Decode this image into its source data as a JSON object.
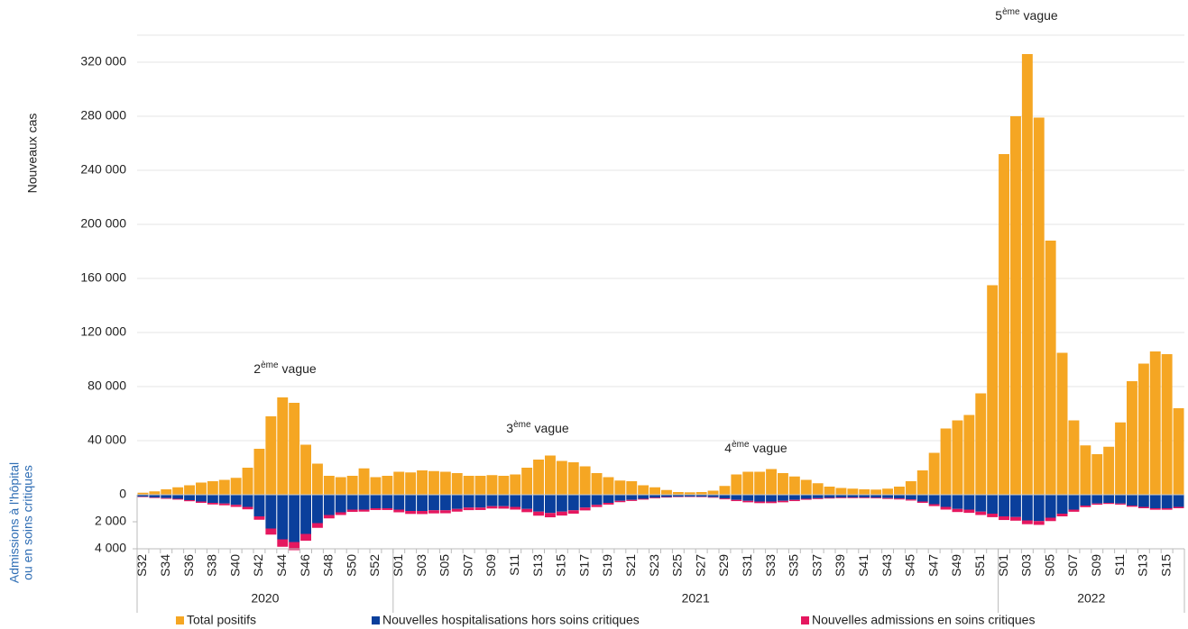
{
  "chart_data": {
    "type": "bar",
    "y_label": "Nouveaux cas",
    "y2_label": [
      "Admissions à l'hôpital",
      "ou en soins critiques"
    ],
    "categories": [
      "S32",
      null,
      "S34",
      null,
      "S36",
      null,
      "S38",
      null,
      "S40",
      null,
      "S42",
      null,
      "S44",
      null,
      "S46",
      null,
      "S48",
      null,
      "S50",
      null,
      "S52",
      null,
      "S01",
      null,
      "S03",
      null,
      "S05",
      null,
      "S07",
      null,
      "S09",
      null,
      "S11",
      null,
      "S13",
      null,
      "S15",
      null,
      "S17",
      null,
      "S19",
      null,
      "S21",
      null,
      "S23",
      null,
      "S25",
      null,
      "S27",
      null,
      "S29",
      null,
      "S31",
      null,
      "S33",
      null,
      "S35",
      null,
      "S37",
      null,
      "S39",
      null,
      "S41",
      null,
      "S43",
      null,
      "S45",
      null,
      "S47",
      null,
      "S49",
      null,
      "S51",
      null,
      "S01",
      null,
      "S03",
      null,
      "S05",
      null,
      "S07",
      null,
      "S09",
      null,
      "S11",
      null,
      "S13",
      null,
      "S15",
      null
    ],
    "years": [
      "2020",
      "2021",
      "2022"
    ],
    "series": [
      {
        "name": "Total positifs",
        "color": "#f5a623",
        "values": [
          1500,
          2500,
          4000,
          5500,
          7000,
          9000,
          10000,
          11000,
          12500,
          20000,
          34000,
          58000,
          72000,
          68000,
          37000,
          23000,
          14000,
          13000,
          14000,
          19500,
          13000,
          14000,
          17000,
          16500,
          18000,
          17500,
          17000,
          16000,
          14000,
          14000,
          14500,
          14000,
          15000,
          20000,
          26000,
          29000,
          25000,
          24000,
          21000,
          16000,
          13000,
          10500,
          10000,
          7000,
          5500,
          3500,
          2000,
          1800,
          2000,
          3000,
          6500,
          15000,
          17000,
          17000,
          19000,
          16000,
          13500,
          11000,
          8500,
          6000,
          5000,
          4500,
          4000,
          3800,
          4500,
          6000,
          10000,
          18000,
          31000,
          49000,
          55000,
          59000,
          75000,
          155000,
          252000,
          280000,
          326000,
          279000,
          188000,
          105000,
          55000,
          36500,
          30000,
          35500,
          53500,
          84000,
          97000,
          106000,
          104000,
          64000
        ]
      },
      {
        "name": "Nouvelles hospitalisations hors soins critiques",
        "color": "#0a3f9c",
        "axis": "y2",
        "values": [
          150,
          200,
          250,
          300,
          400,
          500,
          600,
          650,
          750,
          900,
          1600,
          2500,
          3300,
          3500,
          2900,
          2100,
          1500,
          1300,
          1100,
          1100,
          1000,
          1000,
          1100,
          1200,
          1200,
          1150,
          1150,
          1050,
          950,
          950,
          850,
          850,
          900,
          1050,
          1250,
          1350,
          1250,
          1150,
          950,
          750,
          600,
          450,
          380,
          300,
          220,
          170,
          150,
          140,
          150,
          180,
          280,
          380,
          450,
          500,
          500,
          450,
          380,
          300,
          260,
          230,
          210,
          200,
          200,
          220,
          250,
          280,
          350,
          500,
          700,
          900,
          1050,
          1100,
          1250,
          1400,
          1600,
          1650,
          1900,
          1950,
          1700,
          1400,
          1100,
          800,
          650,
          600,
          650,
          800,
          900,
          1000,
          1000,
          900
        ]
      },
      {
        "name": "Nouvelles admissions en soins critiques",
        "color": "#e5175f",
        "axis": "y2",
        "values": [
          30,
          40,
          50,
          60,
          80,
          100,
          120,
          130,
          150,
          180,
          250,
          450,
          550,
          600,
          500,
          350,
          250,
          200,
          170,
          150,
          130,
          130,
          200,
          220,
          230,
          230,
          220,
          200,
          190,
          180,
          170,
          180,
          200,
          240,
          300,
          320,
          290,
          250,
          210,
          160,
          130,
          100,
          80,
          60,
          50,
          40,
          30,
          30,
          30,
          40,
          60,
          90,
          110,
          120,
          120,
          110,
          90,
          70,
          60,
          50,
          50,
          50,
          50,
          50,
          60,
          70,
          80,
          100,
          140,
          200,
          230,
          240,
          250,
          260,
          270,
          270,
          280,
          280,
          250,
          200,
          160,
          120,
          90,
          80,
          80,
          90,
          100,
          110,
          110,
          100
        ]
      }
    ],
    "ylim": [
      -40000,
      340000
    ],
    "yticks": [
      0,
      {
        "value": 40000,
        "label": "40 000"
      },
      {
        "value": 80000,
        "label": "80 000"
      },
      {
        "value": 120000,
        "label": "120 000"
      },
      {
        "value": 160000,
        "label": "160 000"
      },
      {
        "value": 200000,
        "label": "200 000"
      },
      {
        "value": 240000,
        "label": "240 000"
      },
      {
        "value": 280000,
        "label": "280 000"
      },
      {
        "value": 320000,
        "label": "320 000"
      }
    ],
    "y2lim": [
      4000,
      -34000
    ],
    "y2ticks": [
      {
        "value": 2000,
        "label": "2 000"
      },
      {
        "value": 4000,
        "label": "4 000"
      }
    ],
    "grid": true,
    "annotations": [
      {
        "num": "2",
        "sup": "ème",
        "text": "vague"
      },
      {
        "num": "3",
        "sup": "ème",
        "text": "vague"
      },
      {
        "num": "4",
        "sup": "ème",
        "text": "vague"
      },
      {
        "num": "5",
        "sup": "ème",
        "text": "vague"
      }
    ]
  }
}
